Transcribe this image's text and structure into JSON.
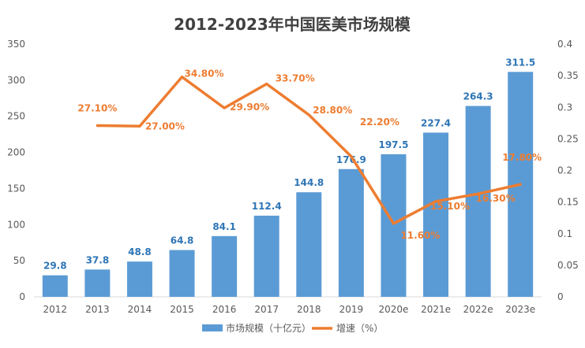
{
  "chart_data": {
    "type": "bar",
    "title": "2012-2023年中国医美市场规模",
    "categories": [
      "2012",
      "2013",
      "2014",
      "2015",
      "2016",
      "2017",
      "2018",
      "2019",
      "2020e",
      "2021e",
      "2022e",
      "2023e"
    ],
    "series": [
      {
        "name": "市场规模（十亿元）",
        "type": "bar",
        "axis": "left",
        "color": "#5B9BD5",
        "values": [
          29.8,
          37.8,
          48.8,
          64.8,
          84.1,
          112.4,
          144.8,
          176.9,
          197.5,
          227.4,
          264.3,
          311.5
        ],
        "labels": [
          "29.8",
          "37.8",
          "48.8",
          "64.8",
          "84.1",
          "112.4",
          "144.8",
          "176.9",
          "197.5",
          "227.4",
          "264.3",
          "311.5"
        ]
      },
      {
        "name": "增速（%）",
        "type": "line",
        "axis": "right",
        "color": "#ED7D31",
        "values": [
          null,
          0.271,
          0.27,
          0.348,
          0.299,
          0.337,
          0.288,
          0.222,
          0.116,
          0.151,
          0.163,
          0.178
        ],
        "labels": [
          null,
          "27.10%",
          "27.00%",
          "34.80%",
          "29.90%",
          "33.70%",
          "28.80%",
          "22.20%",
          "11.60%",
          "15.10%",
          "16.30%",
          "17.80%"
        ]
      }
    ],
    "y_left": {
      "min": 0,
      "max": 350,
      "ticks": [
        0,
        50,
        100,
        150,
        200,
        250,
        300,
        350
      ]
    },
    "y_right": {
      "min": 0,
      "max": 0.4,
      "ticks": [
        "0",
        "0.05",
        "0.1",
        "0.15",
        "0.2",
        "0.25",
        "0.3",
        "0.35",
        "0.4"
      ]
    },
    "grid": false,
    "legend": "bottom"
  }
}
